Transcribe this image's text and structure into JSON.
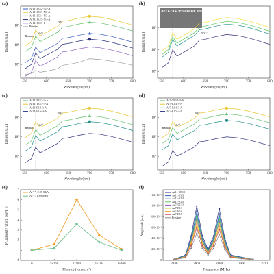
{
  "chart_data": [
    {
      "type": "line",
      "label": "(a)",
      "x_label": "Wavelength (nm)",
      "y_label": "Intensity (a.u.)",
      "log_y": true,
      "legend": "upper left",
      "xlim": [
        540,
        800
      ],
      "xticks": [
        550,
        600,
        650,
        700,
        750,
        800
      ],
      "ylim": [
        200,
        1000000
      ],
      "yticks": [
        {
          "value": 1000,
          "label": "10³"
        },
        {
          "value": 10000,
          "label": "10⁴"
        },
        {
          "value": 100000,
          "label": "10⁵"
        }
      ],
      "annotations": [
        "Raman",
        "NV⁰",
        "NV⁻"
      ],
      "x": [
        550,
        565,
        575,
        585,
        600,
        625,
        637,
        650,
        675,
        700,
        725,
        750,
        775,
        800
      ],
      "series": [
        {
          "name": "Ar11-5E12-N3-A",
          "color": "#3b5fc0",
          "marker": "triangle",
          "values": [
            1200,
            2000,
            8000,
            4000,
            6000,
            12000,
            22000,
            24000,
            32000,
            40000,
            36000,
            28000,
            20000,
            14000
          ]
        },
        {
          "name": "Ar11-1E13-N3-A",
          "color": "#e8c832",
          "marker": "circle",
          "values": [
            9000,
            15000,
            60000,
            30000,
            45000,
            90000,
            165000,
            180000,
            240000,
            300000,
            270000,
            210000,
            150000,
            105000
          ]
        },
        {
          "name": "Ar11-1E14-N3-A",
          "color": "#5fbf6a",
          "marker": "triangle",
          "values": [
            4500,
            7500,
            30000,
            15000,
            22500,
            45000,
            82500,
            90000,
            120000,
            150000,
            135000,
            105000,
            75000,
            52500
          ]
        },
        {
          "name": "Ar11-1E15-N3-A",
          "color": "#2a2f7a",
          "marker": "circle",
          "values": [
            600,
            1000,
            4000,
            2000,
            3000,
            6000,
            11000,
            12000,
            16000,
            20000,
            18000,
            14000,
            10000,
            7000
          ]
        },
        {
          "name": "Ar11-1E13-1",
          "color": "#8a5fbf",
          "values": [
            240,
            400,
            1600,
            800,
            1200,
            2400,
            4400,
            4800,
            6400,
            8000,
            7200,
            5600,
            4000,
            2800
          ]
        },
        {
          "name": "Pristine",
          "color": "#999999",
          "values": [
            300,
            350,
            500,
            400,
            450,
            600,
            900,
            1000,
            1300,
            2000,
            1800,
            1500,
            1200,
            900
          ]
        }
      ]
    },
    {
      "type": "line",
      "label": "(b)",
      "title": "Ar11-E14, irradiated, annealed",
      "x_label": "Wavelength (nm)",
      "y_label": "Intensity (a.u.)",
      "log_y": true,
      "xlim": [
        540,
        800
      ],
      "xticks": [
        550,
        600,
        650,
        700,
        750,
        800
      ],
      "ylim": [
        500,
        1000000
      ],
      "yticks": [
        {
          "value": 1000,
          "label": "10³"
        },
        {
          "value": 10000,
          "label": "10⁴"
        },
        {
          "value": 100000,
          "label": "10⁵"
        }
      ],
      "annotations": [
        "NV⁻"
      ],
      "x": [
        550,
        565,
        575,
        585,
        600,
        625,
        637,
        650,
        675,
        700,
        725,
        750,
        775,
        800
      ],
      "series": [
        {
          "color": "#f2e033",
          "values": [
            9000,
            15000,
            60000,
            30000,
            45000,
            90000,
            165000,
            180000,
            240000,
            300000,
            270000,
            210000,
            150000,
            105000
          ]
        },
        {
          "color": "#5ec962",
          "values": [
            6000,
            10000,
            40000,
            20000,
            30000,
            60000,
            110000,
            120000,
            160000,
            200000,
            180000,
            140000,
            100000,
            70000
          ]
        },
        {
          "color": "#21918c",
          "values": [
            4500,
            7500,
            30000,
            15000,
            22500,
            45000,
            82500,
            90000,
            120000,
            150000,
            135000,
            105000,
            75000,
            52500
          ]
        },
        {
          "color": "#3b2f7a",
          "values": [
            1500,
            2500,
            10000,
            5000,
            7500,
            15000,
            27500,
            30000,
            40000,
            50000,
            45000,
            35000,
            25000,
            17500
          ]
        }
      ]
    },
    {
      "type": "line",
      "label": "(c)",
      "x_label": "Wavelength (nm)",
      "y_label": "Intensity (a.u.)",
      "log_y": true,
      "legend": "upper left",
      "xlim": [
        540,
        800
      ],
      "xticks": [
        550,
        600,
        650,
        700,
        750,
        800
      ],
      "ylim": [
        200,
        1000000
      ],
      "yticks": [
        {
          "value": 1000,
          "label": "10³"
        },
        {
          "value": 10000,
          "label": "10⁴"
        },
        {
          "value": 100000,
          "label": "10⁵"
        }
      ],
      "annotations": [
        "Raman",
        "NV⁰",
        "NV⁻"
      ],
      "x": [
        550,
        565,
        575,
        585,
        600,
        625,
        637,
        650,
        675,
        700,
        725,
        750,
        775,
        800
      ],
      "series": [
        {
          "name": "Ar11-5E12-3-A",
          "color": "#5fbf6a",
          "marker": "triangle",
          "values": [
            3600,
            6000,
            24000,
            12000,
            18000,
            36000,
            66000,
            72000,
            96000,
            120000,
            108000,
            84000,
            60000,
            42000
          ]
        },
        {
          "name": "Ar11-1E13-3-A",
          "color": "#e8c832",
          "marker": "circle",
          "values": [
            9000,
            15000,
            60000,
            30000,
            45000,
            90000,
            165000,
            180000,
            240000,
            300000,
            270000,
            210000,
            150000,
            105000
          ]
        },
        {
          "name": "Ar11-E14-3-A",
          "color": "#21918c",
          "marker": "circle",
          "values": [
            1800,
            3000,
            12000,
            6000,
            9000,
            18000,
            33000,
            36000,
            48000,
            60000,
            54000,
            42000,
            30000,
            21000
          ]
        },
        {
          "name": "Ar11-E15-3-A",
          "color": "#2a2f7a",
          "values": [
            450,
            750,
            3000,
            1500,
            2250,
            4500,
            8250,
            9000,
            12000,
            15000,
            13500,
            10500,
            7500,
            5250
          ]
        }
      ]
    },
    {
      "type": "line",
      "label": "(d)",
      "x_label": "Wavelength (nm)",
      "y_label": "Intensity (a.u.)",
      "log_y": true,
      "legend": "upper left",
      "xlim": [
        540,
        800
      ],
      "xticks": [
        550,
        600,
        650,
        700,
        750,
        800
      ],
      "ylim": [
        200,
        1000000
      ],
      "yticks": [
        {
          "value": 1000,
          "label": "10³"
        },
        {
          "value": 10000,
          "label": "10⁴"
        },
        {
          "value": 100000,
          "label": "10⁵"
        }
      ],
      "annotations": [
        "Raman",
        "NV⁰",
        "NV⁻"
      ],
      "x": [
        550,
        565,
        575,
        585,
        600,
        625,
        637,
        650,
        675,
        700,
        725,
        750,
        775,
        800
      ],
      "series": [
        {
          "name": "Ar7-5E12-3-A",
          "color": "#5fbf6a",
          "marker": "triangle",
          "values": [
            4500,
            7500,
            30000,
            15000,
            22500,
            45000,
            82500,
            90000,
            120000,
            150000,
            135000,
            105000,
            75000,
            52500
          ]
        },
        {
          "name": "Ar7-E13-3-A",
          "color": "#e8c832",
          "marker": "circle",
          "values": [
            9000,
            15000,
            60000,
            30000,
            45000,
            90000,
            165000,
            180000,
            240000,
            300000,
            270000,
            210000,
            150000,
            105000
          ]
        },
        {
          "name": "Ar7-E14-3-A",
          "color": "#21918c",
          "marker": "circle",
          "values": [
            2100,
            3500,
            14000,
            7000,
            10500,
            21000,
            38500,
            42000,
            56000,
            70000,
            63000,
            49000,
            35000,
            24500
          ]
        },
        {
          "name": "Ar7-E15-3-A",
          "color": "#2a2f7a",
          "values": [
            300,
            500,
            2000,
            1000,
            1500,
            3000,
            5500,
            6000,
            8000,
            10000,
            9000,
            7000,
            5000,
            3500
          ]
        }
      ]
    },
    {
      "type": "line",
      "label": "(e)",
      "x_label": "Fluence (ions/cm²)",
      "y_label": "PL intensity ratio(I_NV/I_0)",
      "legend": "upper left",
      "categories": [
        "0",
        "5×10¹²",
        "1×10¹³",
        "1×10¹⁴",
        "1×10¹⁵"
      ],
      "ylim": [
        0,
        7
      ],
      "yticks": [
        0,
        1,
        2,
        3,
        4,
        5,
        6,
        7
      ],
      "series": [
        {
          "name": "Ar¹¹⁺, 2.97 MeV",
          "color": "#f0a030",
          "marker": "diamond",
          "values": [
            1,
            1.6,
            6.0,
            2.5,
            1.1
          ]
        },
        {
          "name": "Ar⁷⁺, 1.89 MeV",
          "color": "#6cc08a",
          "marker": "diamond",
          "values": [
            1,
            1.2,
            3.6,
            1.8,
            1.0
          ]
        }
      ]
    },
    {
      "type": "line",
      "label": "(f)",
      "x_label": "Frequency (MHz)",
      "y_label": "Amplitude (a.u.)",
      "legend": "upper left",
      "xlim": [
        2830,
        2925
      ],
      "xticks": [
        2840,
        2860,
        2880,
        2900,
        2920
      ],
      "ylim": [
        0,
        1.3e-05
      ],
      "yticks": [
        0,
        {
          "value": 2e-06,
          "label": "2.0×10⁻⁶"
        },
        {
          "value": 4e-06,
          "label": "4.0×10⁻⁶"
        },
        {
          "value": 6e-06,
          "label": "6.0×10⁻⁶"
        },
        {
          "value": 8e-06,
          "label": "8.0×10⁻⁶"
        },
        {
          "value": 1e-05,
          "label": "1.0×10⁻⁵"
        },
        {
          "value": 1.2e-05,
          "label": "1.2×10⁻⁵"
        }
      ],
      "x": [
        2840,
        2850,
        2855,
        2860,
        2865,
        2870,
        2875,
        2880,
        2885,
        2890,
        2910
      ],
      "series": [
        {
          "name": "Ar11-5E12",
          "color": "#2a2f7a",
          "marker": "circle",
          "values": [
            2e-07,
            1e-06,
            4.5e-06,
            1e-05,
            4.5e-06,
            2e-06,
            4.5e-06,
            9.5e-06,
            4e-06,
            1e-06,
            2e-07
          ]
        },
        {
          "name": "Ar11-E13",
          "color": "#3b5fc0",
          "marker": "circle",
          "values": [
            1.8e-07,
            9e-07,
            4.05e-06,
            9e-06,
            4.05e-06,
            1.8e-06,
            4.05e-06,
            8.55e-06,
            3.6e-06,
            9e-07,
            1.8e-07
          ]
        },
        {
          "name": "Ar11-E14",
          "color": "#21918c",
          "marker": "circle",
          "values": [
            1.7e-07,
            8.5e-07,
            3.8e-06,
            8.5e-06,
            3.8e-06,
            1.7e-06,
            3.8e-06,
            8.1e-06,
            3.4e-06,
            8.5e-07,
            1.7e-07
          ]
        },
        {
          "name": "Ar11-E15",
          "color": "#5ec962",
          "marker": "circle",
          "values": [
            1.6e-07,
            8e-07,
            3.6e-06,
            8e-06,
            3.6e-06,
            1.6e-06,
            3.6e-06,
            7.6e-06,
            3.2e-06,
            8e-07,
            1.6e-07
          ]
        },
        {
          "name": "Ar7-5E12",
          "color": "#8a5fbf",
          "marker": "circle",
          "values": [
            1.5e-07,
            7.5e-07,
            3.4e-06,
            7.5e-06,
            3.4e-06,
            1.5e-06,
            3.4e-06,
            7.1e-06,
            3e-06,
            7.5e-07,
            1.5e-07
          ]
        },
        {
          "name": "Ar7-E13",
          "color": "#e8c832",
          "marker": "circle",
          "values": [
            1.4e-07,
            7e-07,
            3.2e-06,
            7e-06,
            3.2e-06,
            1.4e-06,
            3.2e-06,
            6.7e-06,
            2.8e-06,
            7e-07,
            1.4e-07
          ]
        },
        {
          "name": "Ar7-E14",
          "color": "#f0a030",
          "marker": "circle",
          "values": [
            1.3e-07,
            6.5e-07,
            2.9e-06,
            6.5e-06,
            2.9e-06,
            1.3e-06,
            2.9e-06,
            6.2e-06,
            2.6e-06,
            6.5e-07,
            1.3e-07
          ]
        },
        {
          "name": "Ar7-E15",
          "color": "#c05050",
          "marker": "circle",
          "values": [
            1.2e-07,
            6e-07,
            2.7e-06,
            6e-06,
            2.7e-06,
            1.2e-06,
            2.7e-06,
            5.7e-06,
            2.4e-06,
            6e-07,
            1.2e-07
          ]
        },
        {
          "name": "Pristine",
          "color": "#888888",
          "marker": "circle",
          "values": [
            1e-07,
            5e-07,
            2.2e-06,
            5e-06,
            2.2e-06,
            1e-06,
            2.2e-06,
            4.8e-06,
            2e-06,
            5e-07,
            1e-07
          ]
        }
      ]
    }
  ]
}
